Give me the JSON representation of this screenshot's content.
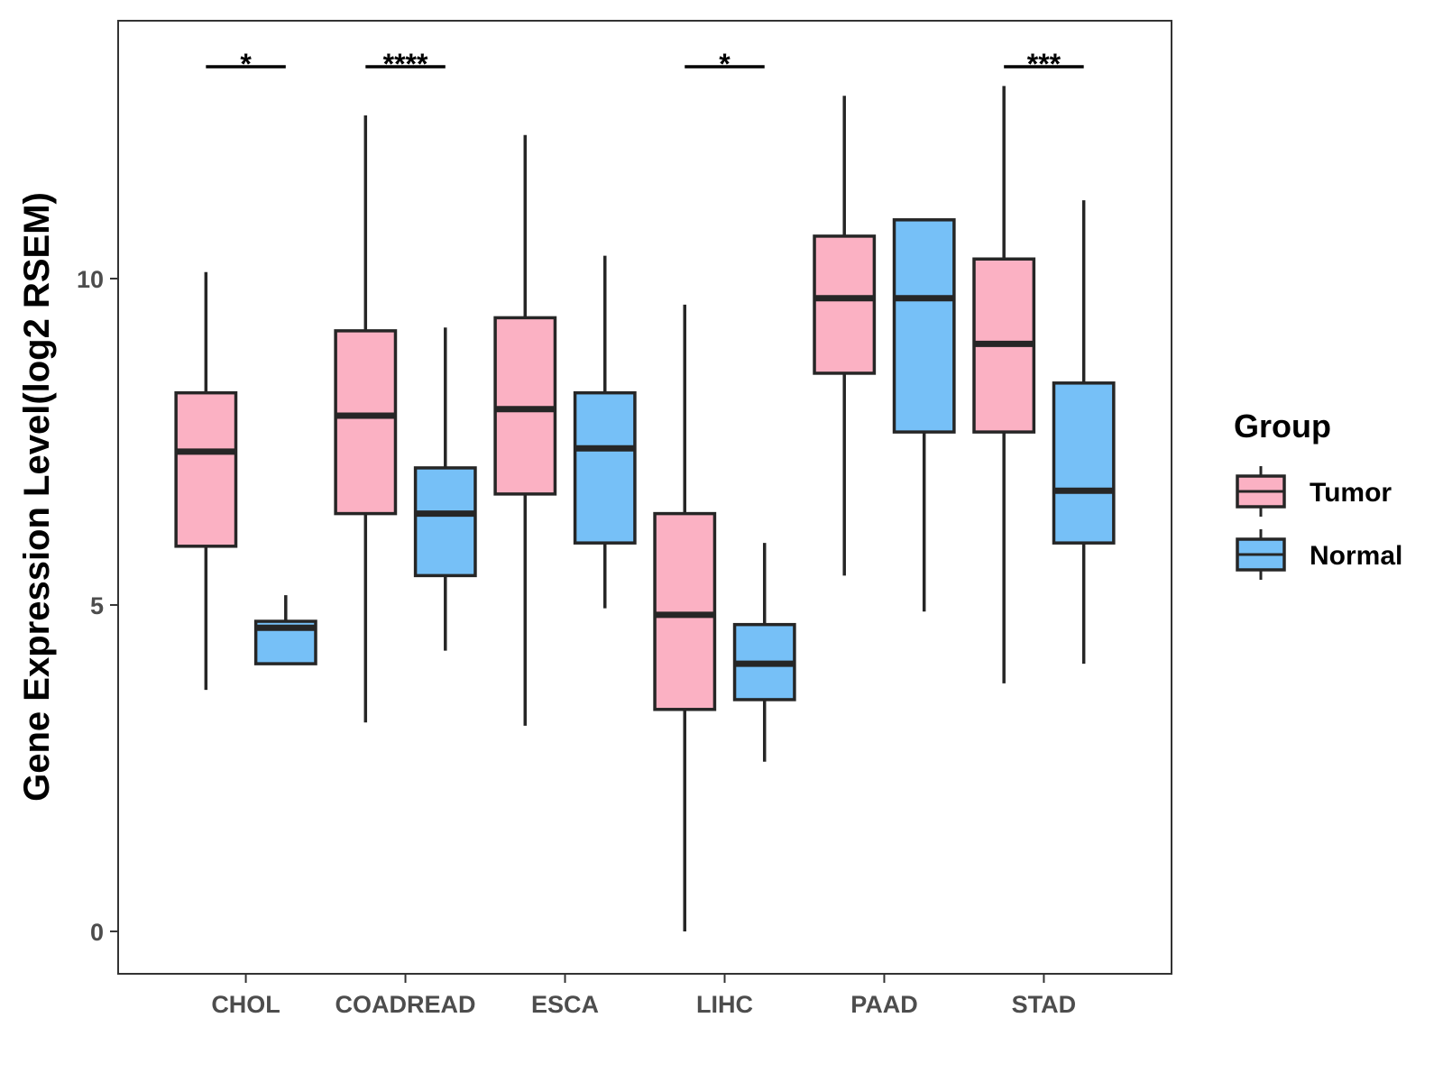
{
  "chart_data": {
    "type": "boxplot",
    "title": "",
    "xlabel": "",
    "ylabel": "Gene Expression Level(log2 RSEM)",
    "ylim": [
      -0.65,
      13.95
    ],
    "yticks": [
      0,
      5,
      10
    ],
    "ytick_labels": [
      "0",
      "5",
      "10"
    ],
    "categories": [
      "CHOL",
      "COADREAD",
      "ESCA",
      "LIHC",
      "PAAD",
      "STAD"
    ],
    "legend": {
      "title": "Group",
      "position": "right",
      "entries": [
        {
          "name": "Tumor",
          "color": "#fbb1c3"
        },
        {
          "name": "Normal",
          "color": "#76c0f7"
        }
      ]
    },
    "series": [
      {
        "name": "Tumor",
        "color": "#fbb1c3",
        "boxes": [
          {
            "category": "CHOL",
            "min": 3.7,
            "q1": 5.9,
            "median": 7.35,
            "q3": 8.25,
            "max": 10.1
          },
          {
            "category": "COADREAD",
            "min": 3.2,
            "q1": 6.4,
            "median": 7.9,
            "q3": 9.2,
            "max": 12.5
          },
          {
            "category": "ESCA",
            "min": 3.15,
            "q1": 6.7,
            "median": 8.0,
            "q3": 9.4,
            "max": 12.2
          },
          {
            "category": "LIHC",
            "min": 0.0,
            "q1": 3.4,
            "median": 4.85,
            "q3": 6.4,
            "max": 9.6
          },
          {
            "category": "PAAD",
            "min": 5.45,
            "q1": 8.55,
            "median": 9.7,
            "q3": 10.65,
            "max": 12.8
          },
          {
            "category": "STAD",
            "min": 3.8,
            "q1": 7.65,
            "median": 9.0,
            "q3": 10.3,
            "max": 12.95
          }
        ]
      },
      {
        "name": "Normal",
        "color": "#76c0f7",
        "boxes": [
          {
            "category": "CHOL",
            "min": 4.1,
            "q1": 4.1,
            "median": 4.65,
            "q3": 4.75,
            "max": 5.15
          },
          {
            "category": "COADREAD",
            "min": 4.3,
            "q1": 5.45,
            "median": 6.4,
            "q3": 7.1,
            "max": 9.25
          },
          {
            "category": "ESCA",
            "min": 4.95,
            "q1": 5.95,
            "median": 7.4,
            "q3": 8.25,
            "max": 10.35
          },
          {
            "category": "LIHC",
            "min": 2.6,
            "q1": 3.55,
            "median": 4.1,
            "q3": 4.7,
            "max": 5.95
          },
          {
            "category": "PAAD",
            "min": 4.9,
            "q1": 7.65,
            "median": 9.7,
            "q3": 10.9,
            "max": 10.9
          },
          {
            "category": "STAD",
            "min": 4.1,
            "q1": 5.95,
            "median": 6.75,
            "q3": 8.4,
            "max": 11.2
          }
        ]
      }
    ],
    "significance": [
      {
        "category": "CHOL",
        "label": "*"
      },
      {
        "category": "COADREAD",
        "label": "****"
      },
      {
        "category": "LIHC",
        "label": "*"
      },
      {
        "category": "STAD",
        "label": "***"
      }
    ],
    "grid": false
  }
}
